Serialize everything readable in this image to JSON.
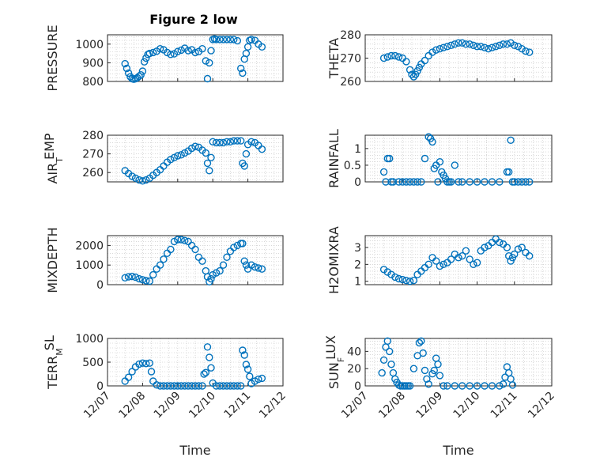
{
  "colors": {
    "marker": "#0072BD",
    "axis": "#262626",
    "grid": "#c0c0c0",
    "background": "#ffffff"
  },
  "figure": {
    "title": "Figure 2 low"
  },
  "chart_data": [
    {
      "type": "scatter",
      "title": "Figure 2 low",
      "ylabel": {
        "main": "PRESSURE"
      },
      "xlim": [
        0,
        5
      ],
      "ylim": [
        800,
        1050
      ],
      "yticks": [
        800,
        900,
        1000
      ],
      "ytick_labels": [
        "800",
        "900",
        "1000"
      ],
      "grid": true,
      "marker": "circle",
      "x": [
        0.5,
        0.55,
        0.6,
        0.65,
        0.7,
        0.75,
        0.8,
        0.85,
        0.9,
        0.95,
        1.0,
        1.05,
        1.1,
        1.15,
        1.2,
        1.3,
        1.4,
        1.5,
        1.6,
        1.7,
        1.8,
        1.9,
        2.0,
        2.1,
        2.2,
        2.3,
        2.4,
        2.5,
        2.6,
        2.7,
        2.8,
        2.85,
        2.9,
        2.95,
        3.0,
        3.05,
        3.1,
        3.2,
        3.3,
        3.4,
        3.5,
        3.6,
        3.7,
        3.8,
        3.85,
        3.9,
        3.95,
        4.0,
        4.05,
        4.1,
        4.2,
        4.3,
        4.4
      ],
      "y": [
        895,
        870,
        845,
        825,
        815,
        812,
        815,
        820,
        828,
        835,
        855,
        905,
        925,
        945,
        950,
        955,
        962,
        975,
        970,
        955,
        945,
        948,
        960,
        968,
        978,
        965,
        970,
        955,
        960,
        975,
        910,
        815,
        900,
        965,
        1025,
        1028,
        1025,
        1025,
        1025,
        1025,
        1025,
        1025,
        1018,
        870,
        845,
        920,
        950,
        985,
        1020,
        1025,
        1020,
        1000,
        985
      ]
    },
    {
      "type": "scatter",
      "ylabel": {
        "main": "THETA"
      },
      "xlim": [
        0,
        5
      ],
      "ylim": [
        260,
        280
      ],
      "yticks": [
        260,
        270,
        280
      ],
      "ytick_labels": [
        "260",
        "270",
        "280"
      ],
      "grid": true,
      "marker": "circle",
      "x": [
        0.5,
        0.6,
        0.7,
        0.8,
        0.9,
        1.0,
        1.1,
        1.2,
        1.25,
        1.3,
        1.35,
        1.4,
        1.45,
        1.5,
        1.6,
        1.7,
        1.8,
        1.9,
        2.0,
        2.1,
        2.2,
        2.3,
        2.4,
        2.5,
        2.6,
        2.7,
        2.8,
        2.9,
        3.0,
        3.1,
        3.2,
        3.3,
        3.4,
        3.5,
        3.6,
        3.7,
        3.8,
        3.9,
        4.0,
        4.1,
        4.2,
        4.3,
        4.4
      ],
      "y": [
        270,
        270.5,
        271,
        271,
        270.5,
        270,
        268.5,
        265,
        263,
        262,
        263,
        264.5,
        266,
        267.5,
        269,
        271,
        272.5,
        273.5,
        274,
        274.5,
        275,
        275.5,
        276,
        276.5,
        276.5,
        276,
        276,
        275.5,
        275,
        275,
        274.5,
        274,
        274.5,
        275,
        275.5,
        276,
        276,
        276.5,
        275.5,
        275,
        274,
        273,
        272.5
      ]
    },
    {
      "type": "scatter",
      "ylabel": {
        "main": "AIR",
        "sub": "T",
        "rest": "EMP"
      },
      "xlim": [
        0,
        5
      ],
      "ylim": [
        255,
        280
      ],
      "yticks": [
        260,
        270,
        280
      ],
      "ytick_labels": [
        "260",
        "270",
        "280"
      ],
      "grid": true,
      "marker": "circle",
      "x": [
        0.5,
        0.6,
        0.7,
        0.8,
        0.9,
        1.0,
        1.1,
        1.2,
        1.3,
        1.4,
        1.5,
        1.6,
        1.7,
        1.8,
        1.9,
        2.0,
        2.1,
        2.2,
        2.3,
        2.4,
        2.5,
        2.6,
        2.7,
        2.8,
        2.85,
        2.9,
        2.95,
        3.0,
        3.1,
        3.2,
        3.3,
        3.4,
        3.5,
        3.6,
        3.7,
        3.8,
        3.85,
        3.9,
        3.95,
        4.0,
        4.1,
        4.2,
        4.3,
        4.4
      ],
      "y": [
        261,
        259.5,
        258,
        257,
        256,
        255.5,
        256,
        257,
        258.5,
        260,
        261.5,
        263.5,
        265.5,
        267,
        268,
        269,
        269.5,
        270.5,
        271.5,
        273,
        274,
        273.5,
        272,
        270.5,
        265,
        261,
        268,
        276.5,
        276,
        276,
        276,
        276.5,
        276.5,
        277,
        277,
        277,
        265,
        263.5,
        270,
        275,
        276.5,
        276,
        274.5,
        272.5
      ]
    },
    {
      "type": "scatter",
      "ylabel": {
        "main": "RAINFALL"
      },
      "xlim": [
        0,
        5
      ],
      "ylim": [
        0,
        1.4
      ],
      "yticks": [
        0,
        0.5,
        1
      ],
      "ytick_labels": [
        "0",
        "0.5",
        "1"
      ],
      "grid": true,
      "marker": "circle",
      "x": [
        0.5,
        0.55,
        0.6,
        0.65,
        0.7,
        0.75,
        0.9,
        1.0,
        1.1,
        1.2,
        1.3,
        1.4,
        1.5,
        1.6,
        1.7,
        1.75,
        1.8,
        1.85,
        1.9,
        1.95,
        2.0,
        2.05,
        2.1,
        2.15,
        2.2,
        2.25,
        2.3,
        2.4,
        2.5,
        2.6,
        2.8,
        3.0,
        3.2,
        3.4,
        3.6,
        3.8,
        3.85,
        3.9,
        3.95,
        4.0,
        4.1,
        4.2,
        4.3,
        4.4
      ],
      "y": [
        0.3,
        0,
        0.7,
        0.7,
        0,
        0,
        0,
        0,
        0,
        0,
        0,
        0,
        0,
        0.7,
        1.35,
        1.3,
        1.2,
        0.4,
        0.5,
        0,
        0.6,
        0.3,
        0.2,
        0.1,
        0,
        0,
        0,
        0.5,
        0,
        0,
        0,
        0,
        0,
        0,
        0,
        0.3,
        0.3,
        1.25,
        0,
        0,
        0,
        0,
        0,
        0
      ]
    },
    {
      "type": "scatter",
      "ylabel": {
        "main": "MIXDEPTH"
      },
      "xlim": [
        0,
        5
      ],
      "ylim": [
        0,
        2500
      ],
      "yticks": [
        0,
        1000,
        2000
      ],
      "ytick_labels": [
        "0",
        "1000",
        "2000"
      ],
      "grid": true,
      "marker": "circle",
      "x": [
        0.5,
        0.6,
        0.7,
        0.8,
        0.9,
        1.0,
        1.1,
        1.2,
        1.3,
        1.4,
        1.5,
        1.6,
        1.7,
        1.8,
        1.9,
        2.0,
        2.1,
        2.2,
        2.3,
        2.4,
        2.5,
        2.6,
        2.7,
        2.8,
        2.85,
        2.9,
        2.95,
        3.0,
        3.1,
        3.2,
        3.3,
        3.4,
        3.5,
        3.6,
        3.7,
        3.8,
        3.85,
        3.9,
        3.95,
        4.0,
        4.1,
        4.2,
        4.3,
        4.4
      ],
      "y": [
        350,
        400,
        420,
        380,
        300,
        250,
        200,
        180,
        500,
        800,
        1000,
        1300,
        1600,
        1800,
        2200,
        2300,
        2300,
        2250,
        2200,
        2000,
        1800,
        1400,
        1200,
        700,
        400,
        150,
        300,
        500,
        600,
        700,
        1000,
        1400,
        1700,
        1900,
        2000,
        2100,
        2100,
        1200,
        1000,
        800,
        1000,
        900,
        850,
        800
      ]
    },
    {
      "type": "scatter",
      "ylabel": {
        "main": "H2OMIXRA"
      },
      "xlim": [
        0,
        5
      ],
      "ylim": [
        0.8,
        3.7
      ],
      "yticks": [
        1,
        2,
        3
      ],
      "ytick_labels": [
        "1",
        "2",
        "3"
      ],
      "grid": true,
      "marker": "circle",
      "x": [
        0.5,
        0.6,
        0.7,
        0.8,
        0.9,
        1.0,
        1.1,
        1.2,
        1.3,
        1.4,
        1.5,
        1.6,
        1.7,
        1.8,
        1.9,
        2.0,
        2.1,
        2.2,
        2.3,
        2.4,
        2.5,
        2.6,
        2.7,
        2.8,
        2.9,
        3.0,
        3.1,
        3.2,
        3.3,
        3.4,
        3.5,
        3.6,
        3.7,
        3.8,
        3.85,
        3.9,
        3.95,
        4.0,
        4.1,
        4.2,
        4.3,
        4.4
      ],
      "y": [
        1.7,
        1.55,
        1.4,
        1.25,
        1.15,
        1.1,
        1.05,
        1.0,
        1.05,
        1.4,
        1.6,
        1.8,
        2.0,
        2.4,
        2.2,
        1.9,
        2.0,
        2.1,
        2.3,
        2.6,
        2.4,
        2.5,
        2.8,
        2.3,
        2.0,
        2.1,
        2.8,
        3.0,
        3.1,
        3.3,
        3.5,
        3.3,
        3.2,
        3.0,
        2.5,
        2.2,
        2.4,
        2.6,
        2.9,
        3.0,
        2.7,
        2.5
      ]
    },
    {
      "type": "scatter",
      "ylabel": {
        "main": "TERR",
        "sub": "M",
        "rest": "SL"
      },
      "xlim": [
        0,
        5
      ],
      "ylim": [
        0,
        1000
      ],
      "yticks": [
        0,
        500,
        1000
      ],
      "ytick_labels": [
        "0",
        "500",
        "1000"
      ],
      "grid": true,
      "marker": "circle",
      "x": [
        0.5,
        0.6,
        0.7,
        0.8,
        0.9,
        1.0,
        1.1,
        1.2,
        1.25,
        1.3,
        1.4,
        1.5,
        1.6,
        1.7,
        1.8,
        1.9,
        2.0,
        2.1,
        2.2,
        2.3,
        2.4,
        2.5,
        2.6,
        2.7,
        2.75,
        2.8,
        2.85,
        2.9,
        2.95,
        3.0,
        3.1,
        3.2,
        3.3,
        3.4,
        3.5,
        3.6,
        3.7,
        3.8,
        3.85,
        3.9,
        3.95,
        4.0,
        4.05,
        4.1,
        4.2,
        4.3,
        4.4
      ],
      "y": [
        100,
        180,
        300,
        400,
        460,
        480,
        470,
        480,
        300,
        100,
        20,
        0,
        0,
        0,
        0,
        0,
        0,
        0,
        0,
        0,
        0,
        0,
        0,
        0,
        250,
        280,
        820,
        600,
        380,
        60,
        0,
        0,
        0,
        0,
        0,
        0,
        0,
        0,
        750,
        650,
        450,
        350,
        200,
        50,
        100,
        140,
        160
      ]
    },
    {
      "type": "scatter",
      "ylabel": {
        "main": "SUN",
        "sub": "F",
        "rest": "LUX"
      },
      "xlim": [
        0,
        5
      ],
      "ylim": [
        0,
        55
      ],
      "yticks": [
        0,
        20,
        40
      ],
      "ytick_labels": [
        "0",
        "20",
        "40"
      ],
      "grid": true,
      "marker": "circle",
      "x": [
        0.45,
        0.5,
        0.55,
        0.6,
        0.65,
        0.7,
        0.75,
        0.8,
        0.85,
        0.9,
        0.95,
        1.0,
        1.05,
        1.1,
        1.15,
        1.2,
        1.3,
        1.4,
        1.45,
        1.5,
        1.55,
        1.6,
        1.65,
        1.7,
        1.8,
        1.85,
        1.9,
        1.95,
        2.0,
        2.1,
        2.2,
        2.4,
        2.6,
        2.8,
        3.0,
        3.2,
        3.4,
        3.6,
        3.7,
        3.75,
        3.8,
        3.85,
        3.9,
        3.95
      ],
      "y": [
        15,
        30,
        45,
        52,
        40,
        25,
        15,
        8,
        4,
        1,
        0,
        0,
        0,
        0,
        0,
        0,
        20,
        35,
        50,
        52,
        38,
        18,
        8,
        2,
        14,
        18,
        32,
        25,
        12,
        0,
        0,
        0,
        0,
        0,
        0,
        0,
        0,
        0,
        2,
        10,
        22,
        15,
        8,
        1
      ]
    }
  ],
  "x_axis": {
    "tick_values": [
      0,
      1,
      2,
      3,
      4,
      5
    ],
    "tick_labels": [
      "12/07",
      "12/08",
      "12/09",
      "12/10",
      "12/11",
      "12/12"
    ],
    "label": "Time"
  }
}
